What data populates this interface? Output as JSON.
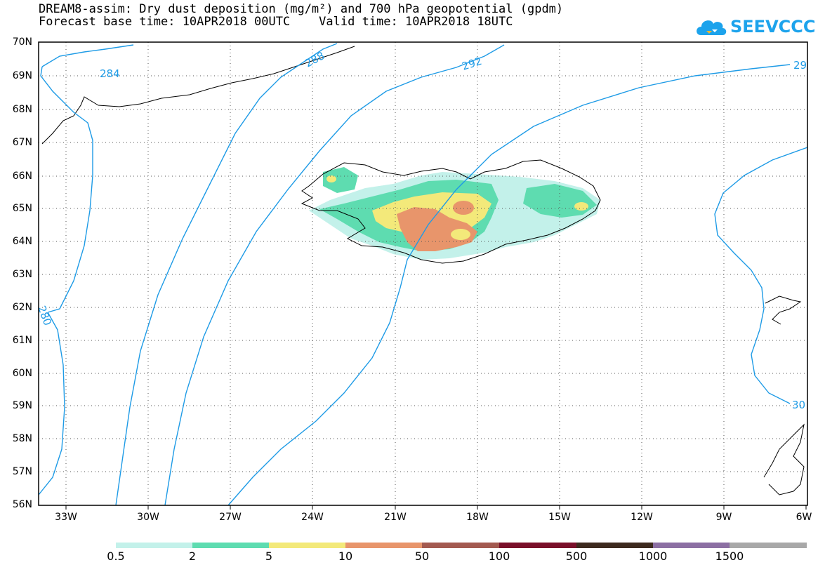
{
  "title": {
    "line1": "DREAM8-assim: Dry dust deposition (mg/m²) and 700 hPa geopotential (gpdm)",
    "line2": "Forecast base time: 10APR2018 00UTC    Valid time: 10APR2018 18UTC"
  },
  "logo": {
    "text": "SEEVCCC",
    "icon": "cloud-logo-icon",
    "color": "#1ca3ec"
  },
  "map": {
    "lat_labels": [
      "70N",
      "69N",
      "68N",
      "67N",
      "66N",
      "65N",
      "64N",
      "63N",
      "62N",
      "61N",
      "60N",
      "59N",
      "58N",
      "57N",
      "56N"
    ],
    "lon_labels": [
      "33W",
      "30W",
      "27W",
      "24W",
      "21W",
      "18W",
      "15W",
      "12W",
      "9W",
      "6W"
    ],
    "contour_labels": [
      "284",
      "288",
      "292",
      "29",
      "280",
      "30"
    ],
    "contour_color": "#1e9be6",
    "grid": "dotted"
  },
  "colorbar": {
    "labels": [
      "0.5",
      "2",
      "5",
      "10",
      "50",
      "100",
      "500",
      "1000",
      "1500"
    ],
    "colors": [
      "#c3f1ea",
      "#5edcb0",
      "#f3e97a",
      "#e8956b",
      "#a35a50",
      "#7a0f2a",
      "#3d2a1e",
      "#8c6fa3",
      "#a8a8a8"
    ]
  }
}
